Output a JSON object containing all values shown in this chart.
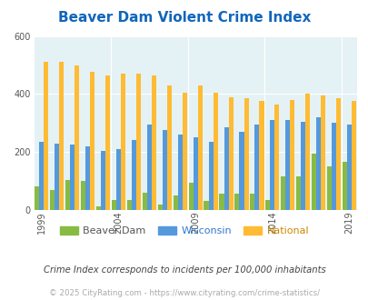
{
  "title": "Beaver Dam Violent Crime Index",
  "years": [
    1999,
    2000,
    2001,
    2002,
    2003,
    2004,
    2005,
    2006,
    2007,
    2008,
    2009,
    2010,
    2011,
    2012,
    2013,
    2014,
    2015,
    2016,
    2017,
    2018,
    2019
  ],
  "beaver_dam": [
    80,
    70,
    105,
    100,
    12,
    35,
    35,
    60,
    20,
    50,
    95,
    30,
    55,
    55,
    55,
    35,
    115,
    115,
    195,
    150,
    165
  ],
  "wisconsin": [
    235,
    230,
    225,
    220,
    205,
    210,
    240,
    295,
    275,
    260,
    250,
    235,
    285,
    270,
    295,
    310,
    310,
    305,
    320,
    300,
    295
  ],
  "national": [
    510,
    510,
    500,
    475,
    465,
    470,
    470,
    465,
    430,
    405,
    430,
    405,
    390,
    385,
    375,
    365,
    380,
    400,
    395,
    385,
    375
  ],
  "color_beaver": "#88bb44",
  "color_wisconsin": "#5599dd",
  "color_national": "#ffbb33",
  "bg_color": "#e4f2f5",
  "ylim": [
    0,
    600
  ],
  "yticks": [
    0,
    200,
    400,
    600
  ],
  "title_fontsize": 11,
  "legend_labels": [
    "Beaver Dam",
    "Wisconsin",
    "National"
  ],
  "legend_text_colors": [
    "#555555",
    "#3377cc",
    "#cc8800"
  ],
  "footnote1": "Crime Index corresponds to incidents per 100,000 inhabitants",
  "footnote2": "© 2025 CityRating.com - https://www.cityrating.com/crime-statistics/",
  "bar_width": 0.3,
  "tick_years": [
    1999,
    2004,
    2009,
    2014,
    2019
  ]
}
